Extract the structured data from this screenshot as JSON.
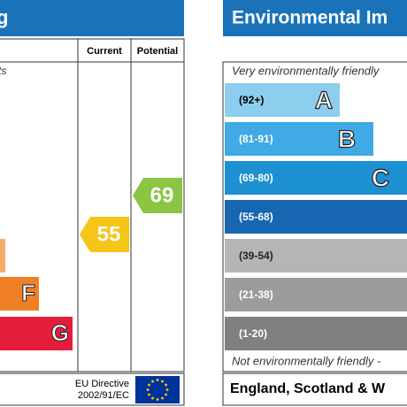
{
  "left_panel": {
    "title": "g",
    "columns": [
      "Current",
      "Potential"
    ],
    "top_note": "ts",
    "bands": [
      {
        "letter": ""
      },
      {
        "letter": "F"
      },
      {
        "letter": "G"
      }
    ],
    "current": {
      "value": 55
    },
    "potential": {
      "value": 69
    },
    "footer": {
      "line1": "EU Directive",
      "line2": "2002/91/EC"
    }
  },
  "right_panel": {
    "title": "Environmental Im",
    "top_note": "Very environmentally friendly",
    "bands": [
      {
        "range": "(92+)",
        "letter": "A"
      },
      {
        "range": "(81-91)",
        "letter": "B"
      },
      {
        "range": "(69-80)",
        "letter": "C"
      },
      {
        "range": "(55-68)",
        "letter": ""
      },
      {
        "range": "(39-54)",
        "letter": ""
      },
      {
        "range": "(21-38)",
        "letter": ""
      },
      {
        "range": "(1-20)",
        "letter": ""
      }
    ],
    "bottom_note": "Not environmentally friendly -",
    "footer": "England, Scotland & W"
  }
}
